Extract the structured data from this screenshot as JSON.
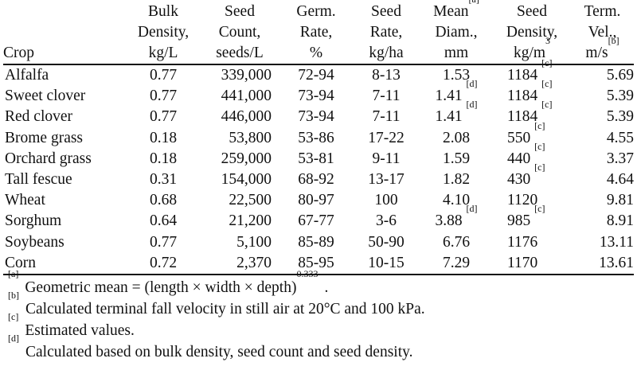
{
  "table": {
    "headers": [
      {
        "lines": [
          "",
          "",
          "Crop"
        ]
      },
      {
        "lines": [
          "Bulk",
          "Density,",
          "kg/L"
        ]
      },
      {
        "lines": [
          "Seed",
          "Count,",
          "seeds/L"
        ]
      },
      {
        "lines": [
          "Germ.",
          "Rate,",
          "%"
        ]
      },
      {
        "lines": [
          "Seed",
          "Rate,",
          "kg/ha"
        ]
      },
      {
        "lines": [
          "Mean",
          "Diam.,",
          "mm"
        ],
        "sup": "[a]"
      },
      {
        "lines": [
          "Seed",
          "Density,",
          "kg/m"
        ],
        "sup3": "3"
      },
      {
        "lines": [
          "Term.",
          "Vel.,",
          "m/s"
        ],
        "sup": "[b]"
      }
    ],
    "rows": [
      {
        "crop": "Alfalfa",
        "bulk": "0.77",
        "count": "339,000",
        "germ": "72-94",
        "rate": "8-13",
        "diam": "1.53",
        "diam_note": "",
        "sd": "1184",
        "sd_note": "[c]",
        "tv": "5.69"
      },
      {
        "crop": "Sweet clover",
        "bulk": "0.77",
        "count": "441,000",
        "germ": "73-94",
        "rate": "7-11",
        "diam": "1.41",
        "diam_note": "[d]",
        "sd": "1184",
        "sd_note": "[c]",
        "tv": "5.39"
      },
      {
        "crop": "Red clover",
        "bulk": "0.77",
        "count": "446,000",
        "germ": "73-94",
        "rate": "7-11",
        "diam": "1.41",
        "diam_note": "[d]",
        "sd": "1184",
        "sd_note": "[c]",
        "tv": "5.39"
      },
      {
        "crop": "Brome grass",
        "bulk": "0.18",
        "count": "53,800",
        "germ": "53-86",
        "rate": "17-22",
        "diam": "2.08",
        "diam_note": "",
        "sd": "550",
        "sd_note": "[c]",
        "tv": "4.55"
      },
      {
        "crop": "Orchard grass",
        "bulk": "0.18",
        "count": "259,000",
        "germ": "53-81",
        "rate": "9-11",
        "diam": "1.59",
        "diam_note": "",
        "sd": "440",
        "sd_note": "[c]",
        "tv": "3.37"
      },
      {
        "crop": "Tall fescue",
        "bulk": "0.31",
        "count": "154,000",
        "germ": "68-92",
        "rate": "13-17",
        "diam": "1.82",
        "diam_note": "",
        "sd": "430",
        "sd_note": "[c]",
        "tv": "4.64"
      },
      {
        "crop": "Wheat",
        "bulk": "0.68",
        "count": "22,500",
        "germ": "80-97",
        "rate": "100",
        "diam": "4.10",
        "diam_note": "",
        "sd": "1120",
        "sd_note": "",
        "tv": "9.81"
      },
      {
        "crop": "Sorghum",
        "bulk": "0.64",
        "count": "21,200",
        "germ": "67-77",
        "rate": "3-6",
        "diam": "3.88",
        "diam_note": "[d]",
        "sd": "985",
        "sd_note": "[c]",
        "tv": "8.91"
      },
      {
        "crop": "Soybeans",
        "bulk": "0.77",
        "count": "5,100",
        "germ": "85-89",
        "rate": "50-90",
        "diam": "6.76",
        "diam_note": "",
        "sd": "1176",
        "sd_note": "",
        "tv": "13.11"
      },
      {
        "crop": "Corn",
        "bulk": "0.72",
        "count": "2,370",
        "germ": "85-95",
        "rate": "10-15",
        "diam": "7.29",
        "diam_note": "",
        "sd": "1170",
        "sd_note": "",
        "tv": "13.61"
      }
    ]
  },
  "footnotes": [
    {
      "mark": "[a]",
      "text": "Geometric mean = (length × width × depth)",
      "sup": "0.333",
      "after": "."
    },
    {
      "mark": "[b]",
      "text": "Calculated terminal fall velocity in still air at 20°C and 100 kPa.",
      "sup": "",
      "after": ""
    },
    {
      "mark": "[c]",
      "text": "Estimated values.",
      "sup": "",
      "after": ""
    },
    {
      "mark": "[d]",
      "text": "Calculated based on bulk density, seed count and seed density.",
      "sup": "",
      "after": ""
    }
  ]
}
